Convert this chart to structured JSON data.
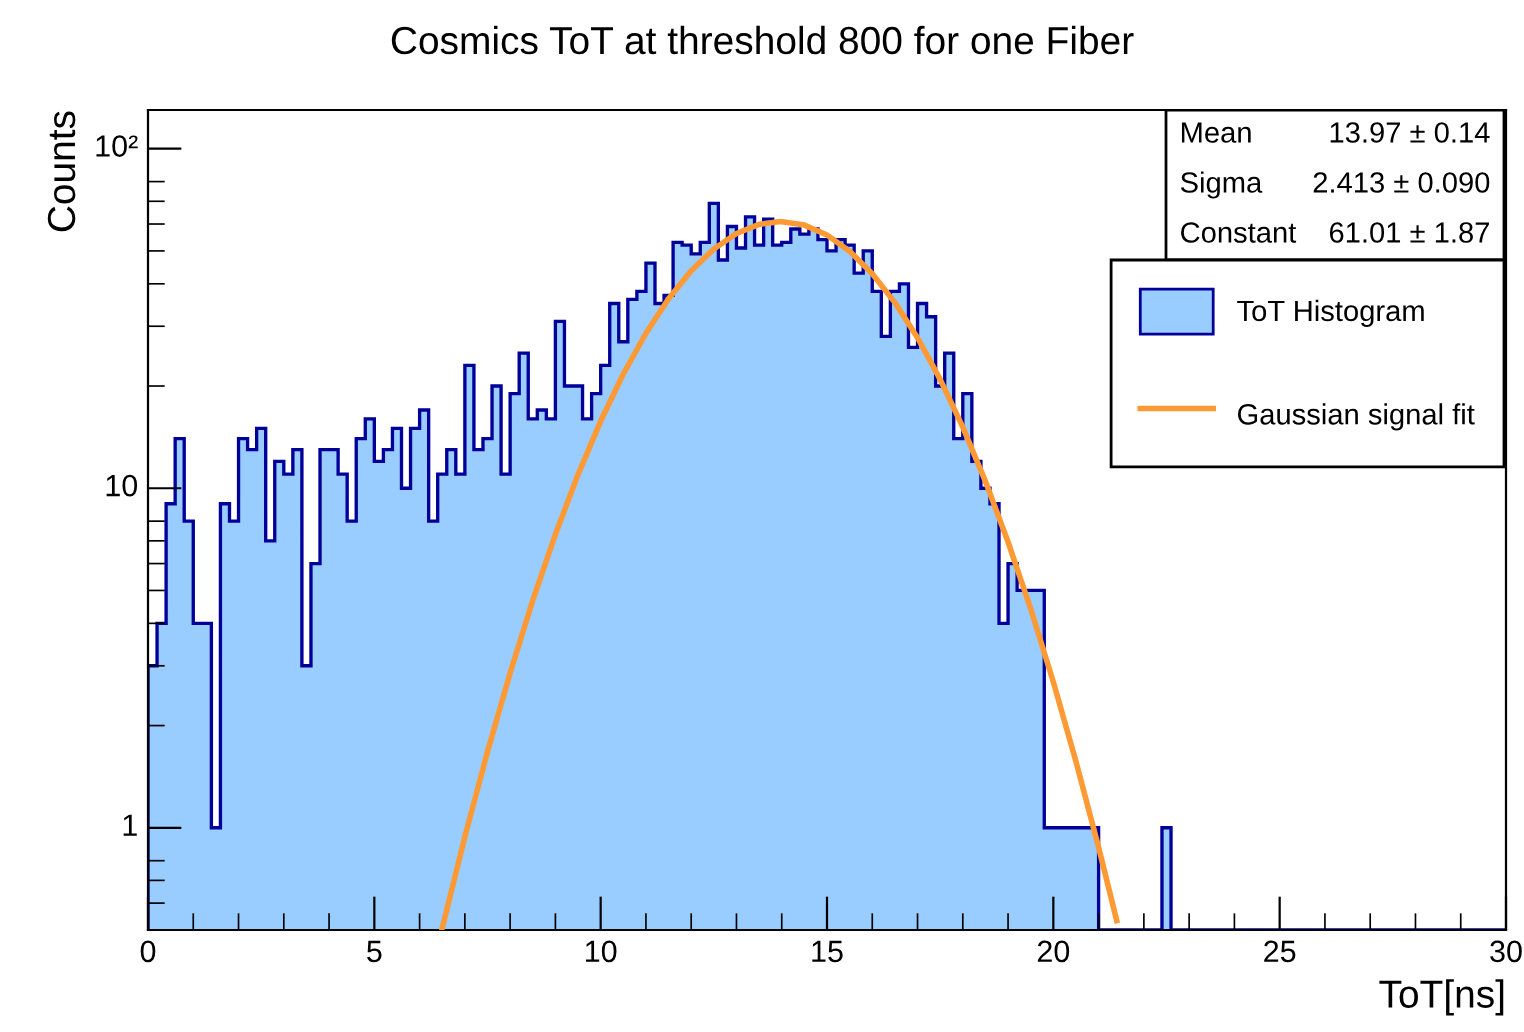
{
  "chart_data": {
    "type": "histogram",
    "title": "Cosmics ToT at threshold 800 for one Fiber",
    "xlabel": "ToT[ns]",
    "ylabel": "Counts",
    "bins": [
      0,
      0.2,
      0.4,
      0.6,
      0.8,
      1.0,
      1.2,
      1.4,
      1.6,
      1.8,
      2.0,
      2.2,
      2.4,
      2.6,
      2.8,
      3.0,
      3.2,
      3.4,
      3.6,
      3.8,
      4.0,
      4.2,
      4.4,
      4.6,
      4.8,
      5.0,
      5.2,
      5.4,
      5.6,
      5.8,
      6.0,
      6.2,
      6.4,
      6.6,
      6.8,
      7.0,
      7.2,
      7.4,
      7.6,
      7.8,
      8.0,
      8.2,
      8.4,
      8.6,
      8.8,
      9.0,
      9.2,
      9.4,
      9.6,
      9.8,
      10.0,
      10.2,
      10.4,
      10.6,
      10.8,
      11.0,
      11.2,
      11.4,
      11.6,
      11.8,
      12.0,
      12.2,
      12.4,
      12.6,
      12.8,
      13.0,
      13.2,
      13.4,
      13.6,
      13.8,
      14.0,
      14.2,
      14.4,
      14.6,
      14.8,
      15.0,
      15.2,
      15.4,
      15.6,
      15.8,
      16.0,
      16.2,
      16.4,
      16.6,
      16.8,
      17.0,
      17.2,
      17.4,
      17.6,
      17.8,
      18.0,
      18.2,
      18.4,
      18.6,
      18.8,
      19.0,
      19.2,
      19.4,
      19.6,
      19.8,
      20.0,
      20.2,
      20.4,
      20.6,
      20.8,
      21.0,
      21.2,
      21.4,
      21.6,
      21.8,
      22.0,
      22.2,
      22.4,
      22.6,
      22.8,
      23.0,
      23.2,
      23.4,
      23.6,
      23.8,
      24.0,
      24.2,
      24.4,
      24.6,
      24.8,
      25.0,
      25.2,
      25.4,
      25.6,
      25.8,
      26.0,
      26.2,
      26.4,
      26.6,
      26.8,
      27.0,
      27.2,
      27.4,
      27.6,
      27.8,
      28.0,
      28.2,
      28.4,
      28.6,
      28.8,
      29.0,
      29.2,
      29.4,
      29.6,
      29.8,
      30.0
    ],
    "series": [
      {
        "type": "histogram",
        "name": "ToT Histogram",
        "color": "#99ccff",
        "values": [
          3,
          4,
          9,
          14,
          8,
          4,
          4,
          1,
          9,
          8,
          14,
          13,
          15,
          7,
          12,
          11,
          13,
          3,
          6,
          13,
          13,
          11,
          8,
          14,
          16,
          12,
          13,
          15,
          10,
          15,
          17,
          8,
          11,
          13,
          11,
          23,
          13,
          14,
          20,
          11,
          19,
          25,
          16,
          17,
          16,
          31,
          20,
          20,
          16,
          19,
          23,
          35,
          27,
          36,
          38,
          46,
          35,
          37,
          53,
          52,
          49,
          53,
          69,
          47,
          59,
          51,
          63,
          52,
          62,
          52,
          53,
          58,
          56,
          58,
          54,
          50,
          54,
          52,
          43,
          50,
          38,
          28,
          38,
          40,
          26,
          35,
          32,
          20,
          25,
          14,
          19,
          12,
          10,
          9,
          4,
          6,
          5,
          5,
          5,
          1,
          1,
          1,
          1,
          1,
          1,
          null,
          null,
          null,
          null,
          null,
          null,
          null,
          1,
          null,
          null,
          null,
          null,
          null,
          null,
          null,
          null,
          null,
          null,
          null,
          null,
          null,
          null,
          null,
          null,
          null,
          null,
          null,
          null,
          null,
          null,
          null,
          null,
          null,
          null,
          null,
          null,
          null,
          null,
          null,
          null,
          null,
          null,
          null,
          null,
          null
        ]
      },
      {
        "type": "line",
        "name": "Gaussian signal fit",
        "color": "#ff9933",
        "x": [
          6.5,
          7.0,
          7.5,
          8.0,
          8.5,
          9.0,
          9.5,
          10.0,
          10.5,
          11.0,
          11.5,
          12.0,
          12.5,
          13.0,
          13.5,
          13.97,
          14.5,
          15.0,
          15.5,
          16.0,
          16.5,
          17.0,
          17.5,
          18.0,
          18.5,
          19.0,
          19.5,
          20.0,
          20.5,
          21.0,
          21.4
        ],
        "values": [
          0.506,
          0.942,
          1.675,
          2.858,
          4.673,
          7.315,
          10.97,
          15.77,
          21.7,
          28.61,
          36.13,
          43.72,
          50.67,
          56.28,
          59.86,
          61.01,
          59.56,
          55.7,
          49.9,
          42.82,
          35.21,
          27.74,
          20.93,
          15.13,
          10.48,
          6.945,
          4.415,
          2.688,
          1.567,
          0.876,
          0.533
        ]
      }
    ],
    "xlim": [
      0,
      30
    ],
    "xticks": [
      0,
      5,
      10,
      15,
      20,
      25,
      30
    ],
    "ylim": [
      0.5,
      130
    ],
    "yticks": [
      {
        "value": 1,
        "label": "1"
      },
      {
        "value": 10,
        "label": "10"
      },
      {
        "value": 100,
        "label": "10²"
      }
    ],
    "log": "y",
    "grid": false,
    "legend": "top right",
    "annotations": [
      "Mean",
      "13.97 ± 0.14",
      "Sigma",
      "2.413 ± 0.090",
      "Constant",
      "61.01 ± 1.87"
    ]
  }
}
